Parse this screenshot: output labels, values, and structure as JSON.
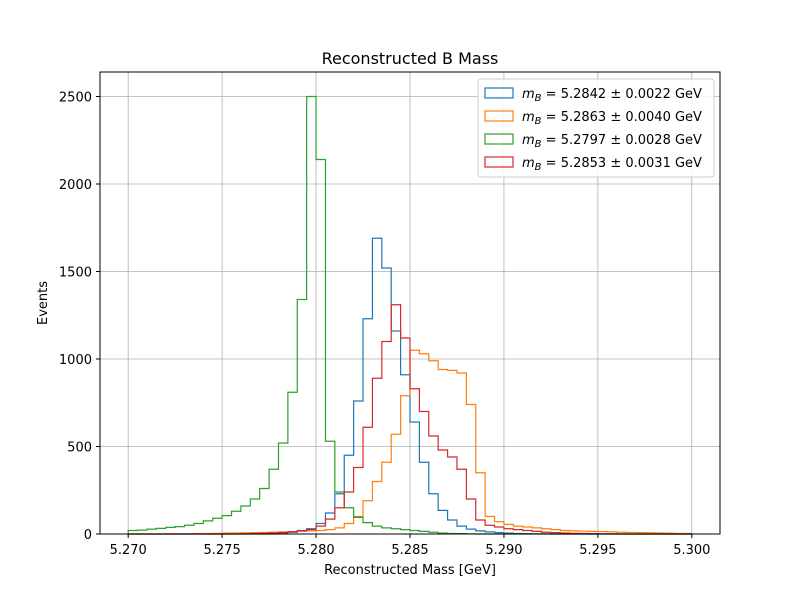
{
  "chart_data": {
    "type": "step-histogram",
    "title": "Reconstructed B Mass",
    "xlabel": "Reconstructed Mass [GeV]",
    "ylabel": "Events",
    "xlim": [
      5.2685,
      5.3015
    ],
    "ylim": [
      0,
      2640
    ],
    "xticks": [
      5.27,
      5.275,
      5.28,
      5.285,
      5.29,
      5.295,
      5.3
    ],
    "xtick_labels": [
      "5.270",
      "5.275",
      "5.280",
      "5.285",
      "5.290",
      "5.295",
      "5.300"
    ],
    "yticks": [
      0,
      500,
      1000,
      1500,
      2000,
      2500
    ],
    "ytick_labels": [
      "0",
      "500",
      "1000",
      "1500",
      "2000",
      "2500"
    ],
    "grid": true,
    "legend_position": "top-right",
    "bins": {
      "start": 5.27,
      "end": 5.3,
      "edges": [
        5.27,
        5.2705,
        5.271,
        5.2715,
        5.272,
        5.2725,
        5.273,
        5.2735,
        5.274,
        5.2745,
        5.275,
        5.2755,
        5.276,
        5.2765,
        5.277,
        5.2775,
        5.278,
        5.2785,
        5.279,
        5.2795,
        5.28,
        5.2805,
        5.281,
        5.2815,
        5.282,
        5.2825,
        5.283,
        5.2835,
        5.284,
        5.2845,
        5.285,
        5.2855,
        5.286,
        5.2865,
        5.287,
        5.2875,
        5.288,
        5.2885,
        5.289,
        5.2895,
        5.29,
        5.2905,
        5.291,
        5.2915,
        5.292,
        5.2925,
        5.293,
        5.2935,
        5.294,
        5.2945,
        5.295,
        5.2955,
        5.296,
        5.2965,
        5.297,
        5.2975,
        5.298,
        5.2985,
        5.299,
        5.2995,
        5.3
      ]
    },
    "series": [
      {
        "name": "m_B = 5.2842 ± 0.0022 GeV",
        "legend_prefix": "m",
        "legend_sub": "B",
        "legend_rest": " = 5.2842 ± 0.0022 GeV",
        "color": "#1f77b4",
        "values": [
          0,
          0,
          0,
          0,
          0,
          0,
          0,
          0,
          0,
          0,
          0,
          0,
          0,
          0,
          0,
          0,
          5,
          10,
          20,
          30,
          60,
          120,
          230,
          450,
          760,
          1230,
          1690,
          1520,
          1160,
          910,
          640,
          410,
          230,
          135,
          80,
          45,
          28,
          18,
          12,
          8,
          5,
          3,
          2,
          1,
          1,
          0,
          0,
          0,
          0,
          0,
          0,
          0,
          0,
          0,
          0,
          0,
          0,
          0,
          0,
          0
        ]
      },
      {
        "name": "m_B = 5.2863 ± 0.0040 GeV",
        "legend_prefix": "m",
        "legend_sub": "B",
        "legend_rest": " = 5.2863 ± 0.0040 GeV",
        "color": "#ff7f0e",
        "values": [
          0,
          0,
          0,
          0,
          0,
          0,
          1,
          2,
          3,
          4,
          5,
          6,
          7,
          8,
          9,
          10,
          12,
          14,
          16,
          18,
          20,
          25,
          35,
          60,
          100,
          190,
          300,
          410,
          570,
          790,
          1050,
          1030,
          990,
          940,
          935,
          920,
          740,
          350,
          100,
          70,
          55,
          45,
          40,
          35,
          30,
          25,
          20,
          18,
          16,
          15,
          14,
          12,
          10,
          9,
          8,
          7,
          6,
          5,
          4,
          3
        ]
      },
      {
        "name": "m_B = 5.2797 ± 0.0028 GeV",
        "legend_prefix": "m",
        "legend_sub": "B",
        "legend_rest": " = 5.2797 ± 0.0028 GeV",
        "color": "#2ca02c",
        "values": [
          20,
          22,
          28,
          32,
          38,
          42,
          50,
          60,
          75,
          90,
          105,
          130,
          160,
          200,
          260,
          370,
          520,
          810,
          1340,
          2500,
          2140,
          530,
          240,
          150,
          95,
          65,
          45,
          35,
          30,
          25,
          20,
          15,
          10,
          5,
          3,
          2,
          1,
          0,
          0,
          0,
          0,
          0,
          0,
          0,
          0,
          0,
          0,
          0,
          0,
          0,
          0,
          0,
          0,
          0,
          0,
          0,
          0,
          0,
          0,
          0
        ]
      },
      {
        "name": "m_B = 5.2853 ± 0.0031 GeV",
        "legend_prefix": "m",
        "legend_sub": "B",
        "legend_rest": " = 5.2853 ± 0.0031 GeV",
        "color": "#d62728",
        "values": [
          0,
          0,
          0,
          0,
          0,
          0,
          0,
          0,
          0,
          0,
          0,
          0,
          0,
          2,
          4,
          6,
          8,
          12,
          18,
          25,
          45,
          85,
          150,
          240,
          380,
          610,
          890,
          1100,
          1310,
          1120,
          830,
          700,
          560,
          480,
          440,
          370,
          200,
          80,
          50,
          40,
          30,
          25,
          20,
          15,
          10,
          8,
          6,
          4,
          3,
          2,
          1,
          1,
          0,
          0,
          0,
          0,
          0,
          0,
          0,
          0
        ]
      }
    ]
  }
}
